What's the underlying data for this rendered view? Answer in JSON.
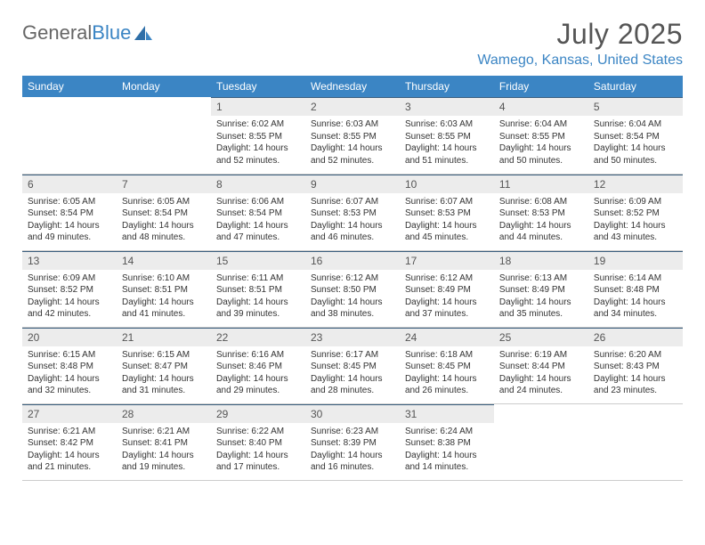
{
  "brand": {
    "part1": "General",
    "part2": "Blue"
  },
  "title": "July 2025",
  "location": "Wamego, Kansas, United States",
  "colors": {
    "header_bg": "#3b85c4",
    "header_text": "#ffffff",
    "daynum_bg": "#ececec",
    "page_bg": "#ffffff",
    "text": "#333333",
    "accent": "#3b85c4"
  },
  "weekdays": [
    "Sunday",
    "Monday",
    "Tuesday",
    "Wednesday",
    "Thursday",
    "Friday",
    "Saturday"
  ],
  "weeks": [
    [
      {
        "empty": true
      },
      {
        "empty": true
      },
      {
        "day": "1",
        "sunrise": "6:02 AM",
        "sunset": "8:55 PM",
        "daylight": "14 hours and 52 minutes."
      },
      {
        "day": "2",
        "sunrise": "6:03 AM",
        "sunset": "8:55 PM",
        "daylight": "14 hours and 52 minutes."
      },
      {
        "day": "3",
        "sunrise": "6:03 AM",
        "sunset": "8:55 PM",
        "daylight": "14 hours and 51 minutes."
      },
      {
        "day": "4",
        "sunrise": "6:04 AM",
        "sunset": "8:55 PM",
        "daylight": "14 hours and 50 minutes."
      },
      {
        "day": "5",
        "sunrise": "6:04 AM",
        "sunset": "8:54 PM",
        "daylight": "14 hours and 50 minutes."
      }
    ],
    [
      {
        "day": "6",
        "sunrise": "6:05 AM",
        "sunset": "8:54 PM",
        "daylight": "14 hours and 49 minutes."
      },
      {
        "day": "7",
        "sunrise": "6:05 AM",
        "sunset": "8:54 PM",
        "daylight": "14 hours and 48 minutes."
      },
      {
        "day": "8",
        "sunrise": "6:06 AM",
        "sunset": "8:54 PM",
        "daylight": "14 hours and 47 minutes."
      },
      {
        "day": "9",
        "sunrise": "6:07 AM",
        "sunset": "8:53 PM",
        "daylight": "14 hours and 46 minutes."
      },
      {
        "day": "10",
        "sunrise": "6:07 AM",
        "sunset": "8:53 PM",
        "daylight": "14 hours and 45 minutes."
      },
      {
        "day": "11",
        "sunrise": "6:08 AM",
        "sunset": "8:53 PM",
        "daylight": "14 hours and 44 minutes."
      },
      {
        "day": "12",
        "sunrise": "6:09 AM",
        "sunset": "8:52 PM",
        "daylight": "14 hours and 43 minutes."
      }
    ],
    [
      {
        "day": "13",
        "sunrise": "6:09 AM",
        "sunset": "8:52 PM",
        "daylight": "14 hours and 42 minutes."
      },
      {
        "day": "14",
        "sunrise": "6:10 AM",
        "sunset": "8:51 PM",
        "daylight": "14 hours and 41 minutes."
      },
      {
        "day": "15",
        "sunrise": "6:11 AM",
        "sunset": "8:51 PM",
        "daylight": "14 hours and 39 minutes."
      },
      {
        "day": "16",
        "sunrise": "6:12 AM",
        "sunset": "8:50 PM",
        "daylight": "14 hours and 38 minutes."
      },
      {
        "day": "17",
        "sunrise": "6:12 AM",
        "sunset": "8:49 PM",
        "daylight": "14 hours and 37 minutes."
      },
      {
        "day": "18",
        "sunrise": "6:13 AM",
        "sunset": "8:49 PM",
        "daylight": "14 hours and 35 minutes."
      },
      {
        "day": "19",
        "sunrise": "6:14 AM",
        "sunset": "8:48 PM",
        "daylight": "14 hours and 34 minutes."
      }
    ],
    [
      {
        "day": "20",
        "sunrise": "6:15 AM",
        "sunset": "8:48 PM",
        "daylight": "14 hours and 32 minutes."
      },
      {
        "day": "21",
        "sunrise": "6:15 AM",
        "sunset": "8:47 PM",
        "daylight": "14 hours and 31 minutes."
      },
      {
        "day": "22",
        "sunrise": "6:16 AM",
        "sunset": "8:46 PM",
        "daylight": "14 hours and 29 minutes."
      },
      {
        "day": "23",
        "sunrise": "6:17 AM",
        "sunset": "8:45 PM",
        "daylight": "14 hours and 28 minutes."
      },
      {
        "day": "24",
        "sunrise": "6:18 AM",
        "sunset": "8:45 PM",
        "daylight": "14 hours and 26 minutes."
      },
      {
        "day": "25",
        "sunrise": "6:19 AM",
        "sunset": "8:44 PM",
        "daylight": "14 hours and 24 minutes."
      },
      {
        "day": "26",
        "sunrise": "6:20 AM",
        "sunset": "8:43 PM",
        "daylight": "14 hours and 23 minutes."
      }
    ],
    [
      {
        "day": "27",
        "sunrise": "6:21 AM",
        "sunset": "8:42 PM",
        "daylight": "14 hours and 21 minutes."
      },
      {
        "day": "28",
        "sunrise": "6:21 AM",
        "sunset": "8:41 PM",
        "daylight": "14 hours and 19 minutes."
      },
      {
        "day": "29",
        "sunrise": "6:22 AM",
        "sunset": "8:40 PM",
        "daylight": "14 hours and 17 minutes."
      },
      {
        "day": "30",
        "sunrise": "6:23 AM",
        "sunset": "8:39 PM",
        "daylight": "14 hours and 16 minutes."
      },
      {
        "day": "31",
        "sunrise": "6:24 AM",
        "sunset": "8:38 PM",
        "daylight": "14 hours and 14 minutes."
      },
      {
        "empty": true
      },
      {
        "empty": true
      }
    ]
  ],
  "labels": {
    "sunrise": "Sunrise:",
    "sunset": "Sunset:",
    "daylight": "Daylight:"
  }
}
